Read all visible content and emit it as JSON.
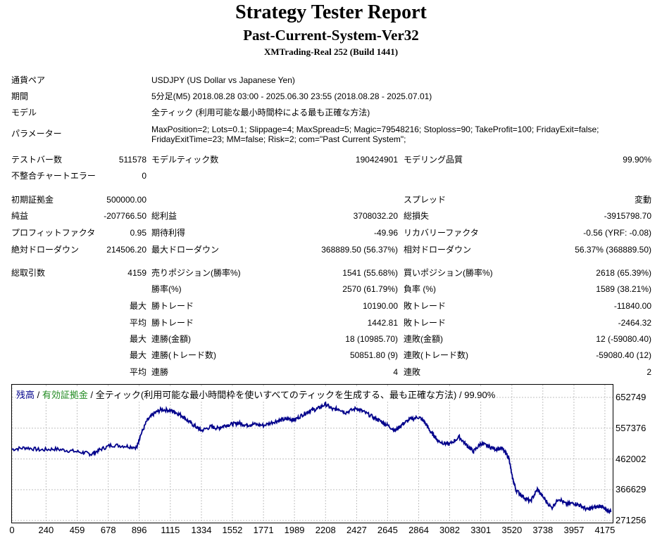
{
  "title": "Strategy Tester Report",
  "subtitle": "Past-Current-System-Ver32",
  "server": "XMTrading-Real 252 (Build 1441)",
  "info": [
    {
      "label": "通貨ペア",
      "value": "USDJPY (US Dollar vs Japanese Yen)"
    },
    {
      "label": "期間",
      "value": "5分足(M5) 2018.08.28 03:00 - 2025.06.30 23:55 (2018.08.28 - 2025.07.01)"
    },
    {
      "label": "モデル",
      "value": "全ティック (利用可能な最小時間枠による最も正確な方法)"
    },
    {
      "label": "パラメーター",
      "value": "MaxPosition=2; Lots=0.1; Slippage=4; MaxSpread=5; Magic=79548216; Stoploss=90; TakeProfit=100; FridayExit=false; FridayExitTime=23; MM=false; Risk=2; com=\"Past Current System\";"
    }
  ],
  "stats": {
    "bars_label": "テストバー数",
    "bars": "511578",
    "ticks_label": "モデルティック数",
    "ticks": "190424901",
    "quality_label": "モデリング品質",
    "quality": "99.90%",
    "mismatch_label": "不整合チャートエラー",
    "mismatch": "0",
    "deposit_label": "初期証拠金",
    "deposit": "500000.00",
    "spread_label": "スプレッド",
    "spread": "変動",
    "net_label": "純益",
    "net": "-207766.50",
    "gross_profit_label": "総利益",
    "gross_profit": "3708032.20",
    "gross_loss_label": "総損失",
    "gross_loss": "-3915798.70",
    "pf_label": "プロフィットファクタ",
    "pf": "0.95",
    "expected_label": "期待利得",
    "expected": "-49.96",
    "recovery_label": "リカバリーファクタ",
    "recovery": "-0.56 (YRF: -0.08)",
    "abs_dd_label": "絶対ドローダウン",
    "abs_dd": "214506.20",
    "max_dd_label": "最大ドローダウン",
    "max_dd": "368889.50 (56.37%)",
    "rel_dd_label": "相対ドローダウン",
    "rel_dd": "56.37% (368889.50)",
    "trades_label": "総取引数",
    "trades": "4159",
    "short_label": "売りポジション(勝率%)",
    "short": "1541 (55.68%)",
    "long_label": "買いポジション(勝率%)",
    "long": "2618 (65.39%)",
    "win_rate_label": "勝率(%)",
    "win_rate": "2570 (61.79%)",
    "loss_rate_label": "負率 (%)",
    "loss_rate": "1589 (38.21%)",
    "max_label": "最大",
    "avg_label": "平均",
    "max_win_label": "勝トレード",
    "max_win": "10190.00",
    "max_loss_label": "敗トレード",
    "max_loss": "-11840.00",
    "avg_win_label": "勝トレード",
    "avg_win": "1442.81",
    "avg_loss_label": "敗トレード",
    "avg_loss": "-2464.32",
    "cons_win_amt_label": "連勝(金額)",
    "cons_win_amt": "18 (10985.70)",
    "cons_loss_amt_label": "連敗(金額)",
    "cons_loss_amt": "12 (-59080.40)",
    "cons_win_cnt_label": "連勝(トレード数)",
    "cons_win_cnt": "50851.80 (9)",
    "cons_loss_cnt_label": "連敗(トレード数)",
    "cons_loss_cnt": "-59080.40 (12)",
    "avg_cons_win_label": "連勝",
    "avg_cons_win": "4",
    "avg_cons_loss_label": "連敗",
    "avg_cons_loss": "2"
  },
  "chart_data": {
    "type": "line",
    "legend_balance": "残高",
    "legend_sep1": " / ",
    "legend_equity": "有効証拠金",
    "legend_rest": " / 全ティック(利用可能な最小時間枠を使いすべてのティックを生成する、最も正確な方法) / 99.90%",
    "colors": {
      "balance": "#00008b",
      "equity": "#228b22",
      "grid": "#c0c0c0"
    },
    "x_ticks": [
      "0",
      "240",
      "459",
      "678",
      "896",
      "1115",
      "1334",
      "1552",
      "1771",
      "1989",
      "2208",
      "2427",
      "2645",
      "2864",
      "3082",
      "3301",
      "3520",
      "3738",
      "3957",
      "4175"
    ],
    "y_ticks": [
      "652749",
      "557376",
      "462002",
      "366629",
      "271256"
    ],
    "xlim": [
      0,
      4230
    ],
    "ylim": [
      271256,
      652749
    ],
    "grid": true,
    "series": [
      {
        "x": [
          0,
          100,
          200,
          300,
          400,
          500,
          560,
          620,
          700,
          800,
          880,
          900,
          950,
          1000,
          1050,
          1115,
          1150,
          1200,
          1250,
          1300,
          1334,
          1400,
          1450,
          1500,
          1552,
          1600,
          1650,
          1700,
          1771,
          1850,
          1900,
          1950,
          1989,
          2050,
          2100,
          2150,
          2208,
          2260,
          2300,
          2350,
          2427,
          2480,
          2550,
          2600,
          2645,
          2700,
          2750,
          2800,
          2864,
          2900,
          2950,
          2980,
          3000,
          3050,
          3082,
          3150,
          3200,
          3250,
          3301,
          3350,
          3400,
          3450,
          3500,
          3520,
          3550,
          3600,
          3650,
          3700,
          3738,
          3800,
          3850,
          3900,
          3957,
          4000,
          4050,
          4100,
          4150,
          4175,
          4220
        ],
        "y": [
          492000,
          497000,
          490000,
          493000,
          488000,
          482000,
          477000,
          491000,
          505000,
          502000,
          498000,
          530000,
          580000,
          603000,
          615000,
          613000,
          607000,
          595000,
          576000,
          560000,
          550000,
          562000,
          557000,
          566000,
          570000,
          573000,
          567000,
          570000,
          566000,
          578000,
          583000,
          586000,
          583000,
          600000,
          612000,
          617000,
          632000,
          615000,
          618000,
          606000,
          619000,
          607000,
          590000,
          578000,
          566000,
          550000,
          570000,
          584000,
          592000,
          580000,
          545000,
          530000,
          518000,
          510000,
          508000,
          530000,
          505000,
          485000,
          510000,
          502000,
          493000,
          495000,
          465000,
          410000,
          365000,
          345000,
          330000,
          368000,
          345000,
          310000,
          340000,
          322000,
          325000,
          318000,
          305000,
          312000,
          317000,
          305000,
          300000
        ]
      }
    ]
  }
}
